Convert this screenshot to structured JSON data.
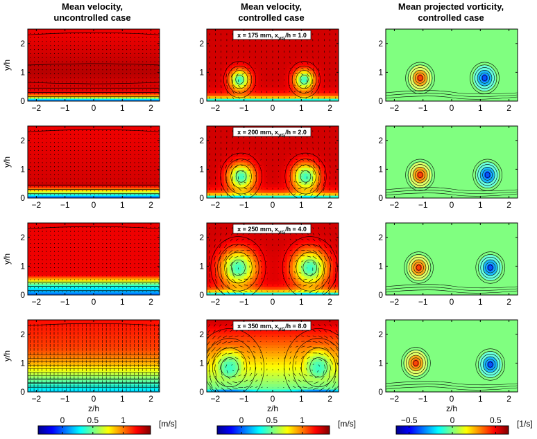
{
  "chart_data": [
    {
      "type": "heatmap",
      "column": "Mean velocity, uncontrolled case",
      "column_titles": [
        "Mean velocity,",
        "uncontrolled case"
      ],
      "colorbar": {
        "ticks": [
          0,
          0.5,
          1
        ],
        "unit": "[m/s]",
        "range": [
          -0.4,
          1.45
        ],
        "colormap": "jet"
      },
      "panels": [
        {
          "row": 1,
          "label": "",
          "xlabel": "",
          "ylabel": "y/h",
          "xlim": [
            -2.3,
            2.3
          ],
          "ylim": [
            0,
            2.5
          ],
          "xticks": [
            -2,
            -1,
            0,
            1,
            2
          ],
          "yticks": [
            0,
            1,
            2
          ],
          "field_profile": "uniform_jet",
          "quiver": "dots",
          "samples": [
            {
              "y": 0.0,
              "value": -0.15
            },
            {
              "y": 0.15,
              "value": 0.8
            },
            {
              "y": 0.3,
              "value": 1.25
            },
            {
              "y": 1.0,
              "value": 1.35
            },
            {
              "y": 2.3,
              "value": 1.25
            }
          ]
        },
        {
          "row": 2,
          "label": "",
          "xlabel": "",
          "ylabel": "y/h",
          "xlim": [
            -2.3,
            2.3
          ],
          "ylim": [
            0,
            2.5
          ],
          "xticks": [
            -2,
            -1,
            0,
            1,
            2
          ],
          "yticks": [
            0,
            1,
            2
          ],
          "field_profile": "uniform",
          "quiver": "dots",
          "samples": [
            {
              "y": 0.0,
              "value": -0.1
            },
            {
              "y": 0.25,
              "value": 0.8
            },
            {
              "y": 0.45,
              "value": 1.3
            },
            {
              "y": 2.3,
              "value": 1.25
            }
          ]
        },
        {
          "row": 3,
          "label": "",
          "xlabel": "",
          "ylabel": "y/h",
          "xlim": [
            -2.3,
            2.3
          ],
          "ylim": [
            0,
            2.5
          ],
          "xticks": [
            -2,
            -1,
            0,
            1,
            2
          ],
          "yticks": [
            0,
            1,
            2
          ],
          "field_profile": "uniform",
          "quiver": "dots",
          "samples": [
            {
              "y": 0.0,
              "value": 0.0
            },
            {
              "y": 0.35,
              "value": 0.4
            },
            {
              "y": 0.7,
              "value": 1.25
            },
            {
              "y": 2.3,
              "value": 1.25
            }
          ]
        },
        {
          "row": 4,
          "label": "",
          "xlabel": "z/h",
          "ylabel": "y/h",
          "xlim": [
            -2.3,
            2.3
          ],
          "ylim": [
            0,
            2.5
          ],
          "xticks": [
            -2,
            -1,
            0,
            1,
            2
          ],
          "yticks": [
            0,
            1,
            2
          ],
          "field_profile": "gradient",
          "quiver": "uniform",
          "samples": [
            {
              "y": 0.0,
              "value": 0.2
            },
            {
              "y": 0.5,
              "value": 0.55
            },
            {
              "y": 1.0,
              "value": 0.9
            },
            {
              "y": 1.5,
              "value": 1.1
            },
            {
              "y": 2.5,
              "value": 1.2
            }
          ]
        }
      ]
    },
    {
      "type": "heatmap",
      "column": "Mean velocity, controlled case",
      "column_titles": [
        "Mean velocity,",
        "controlled case"
      ],
      "colorbar": {
        "ticks": [
          0,
          0.5,
          1
        ],
        "unit": "[m/s]",
        "range": [
          -0.4,
          1.45
        ],
        "colormap": "jet"
      },
      "panels": [
        {
          "row": 1,
          "label": "x = 175 mm, x_VG/h = 1.0",
          "label_parts": [
            "x = 175 mm, x",
            "VG",
            "/h = 1.0"
          ],
          "xlabel": "",
          "ylabel": "",
          "xlim": [
            -2.3,
            2.3
          ],
          "ylim": [
            0,
            2.5
          ],
          "xticks": [
            -2,
            -1,
            0,
            1,
            2
          ],
          "yticks": [
            0,
            1,
            2
          ],
          "vortices": [
            {
              "z": -1.15,
              "y": 0.75,
              "radius": 0.35
            },
            {
              "z": 1.1,
              "y": 0.75,
              "radius": 0.35
            }
          ],
          "quiver": "vortex_pair"
        },
        {
          "row": 2,
          "label": "x = 200 mm, x_VG/h = 2.0",
          "label_parts": [
            "x = 200 mm, x",
            "VG",
            "/h = 2.0"
          ],
          "xlabel": "",
          "ylabel": "",
          "xlim": [
            -2.3,
            2.3
          ],
          "ylim": [
            0,
            2.5
          ],
          "xticks": [
            -2,
            -1,
            0,
            1,
            2
          ],
          "yticks": [
            0,
            1,
            2
          ],
          "vortices": [
            {
              "z": -1.1,
              "y": 0.75,
              "radius": 0.45
            },
            {
              "z": 1.15,
              "y": 0.75,
              "radius": 0.45
            }
          ],
          "quiver": "vortex_pair"
        },
        {
          "row": 3,
          "label": "x = 250 mm, x_VG/h = 4.0",
          "label_parts": [
            "x = 250 mm, x",
            "VG",
            "/h = 4.0"
          ],
          "xlabel": "",
          "ylabel": "",
          "xlim": [
            -2.3,
            2.3
          ],
          "ylim": [
            0,
            2.5
          ],
          "xticks": [
            -2,
            -1,
            0,
            1,
            2
          ],
          "yticks": [
            0,
            1,
            2
          ],
          "vortices": [
            {
              "z": -1.2,
              "y": 0.95,
              "radius": 0.6
            },
            {
              "z": 1.3,
              "y": 0.95,
              "radius": 0.6
            }
          ],
          "quiver": "vortex_pair"
        },
        {
          "row": 4,
          "label": "x = 350 mm, x_VG/h = 8.0",
          "label_parts": [
            "x = 350 mm, x",
            "VG",
            "/h = 8.0"
          ],
          "xlabel": "z/h",
          "ylabel": "",
          "xlim": [
            -2.3,
            2.3
          ],
          "ylim": [
            0,
            2.5
          ],
          "xticks": [
            -2,
            -1,
            0,
            1,
            2
          ],
          "yticks": [
            0,
            1,
            2
          ],
          "vortices": [
            {
              "z": -1.5,
              "y": 0.85,
              "radius": 0.75
            },
            {
              "z": 1.6,
              "y": 0.85,
              "radius": 0.75
            }
          ],
          "quiver": "vortex_pair"
        }
      ]
    },
    {
      "type": "heatmap",
      "column": "Mean projected vorticity, controlled case",
      "column_titles": [
        "Mean projected vorticity,",
        "controlled case"
      ],
      "colorbar": {
        "ticks": [
          -0.5,
          0,
          0.5
        ],
        "unit": "[1/s]",
        "range": [
          -0.65,
          0.65
        ],
        "colormap": "jet"
      },
      "panels": [
        {
          "row": 1,
          "xlabel": "",
          "ylabel": "",
          "xlim": [
            -2.3,
            2.3
          ],
          "ylim": [
            0,
            2.5
          ],
          "xticks": [
            -2,
            -1,
            0,
            1,
            2
          ],
          "yticks": [
            0,
            1,
            2
          ],
          "vortices": [
            {
              "z": -1.1,
              "y": 0.8,
              "sign": 1
            },
            {
              "z": 1.15,
              "y": 0.8,
              "sign": -1
            }
          ]
        },
        {
          "row": 2,
          "xlabel": "",
          "ylabel": "",
          "xlim": [
            -2.3,
            2.3
          ],
          "ylim": [
            0,
            2.5
          ],
          "xticks": [
            -2,
            -1,
            0,
            1,
            2
          ],
          "yticks": [
            0,
            1,
            2
          ],
          "vortices": [
            {
              "z": -1.1,
              "y": 0.8,
              "sign": 1
            },
            {
              "z": 1.25,
              "y": 0.8,
              "sign": -1
            }
          ]
        },
        {
          "row": 3,
          "xlabel": "",
          "ylabel": "",
          "xlim": [
            -2.3,
            2.3
          ],
          "ylim": [
            0,
            2.5
          ],
          "xticks": [
            -2,
            -1,
            0,
            1,
            2
          ],
          "yticks": [
            0,
            1,
            2
          ],
          "vortices": [
            {
              "z": -1.15,
              "y": 0.95,
              "sign": 1
            },
            {
              "z": 1.35,
              "y": 0.95,
              "sign": -1
            }
          ]
        },
        {
          "row": 4,
          "xlabel": "z/h",
          "ylabel": "",
          "xlim": [
            -2.3,
            2.3
          ],
          "ylim": [
            0,
            2.5
          ],
          "xticks": [
            -2,
            -1,
            0,
            1,
            2
          ],
          "yticks": [
            0,
            1,
            2
          ],
          "vortices": [
            {
              "z": -1.25,
              "y": 1.0,
              "sign": 1
            },
            {
              "z": 1.35,
              "y": 0.95,
              "sign": -1
            }
          ]
        }
      ]
    }
  ],
  "colors": {
    "background": "#ffffff",
    "vorticity_zero": "#80ff80",
    "axis": "#000000"
  }
}
